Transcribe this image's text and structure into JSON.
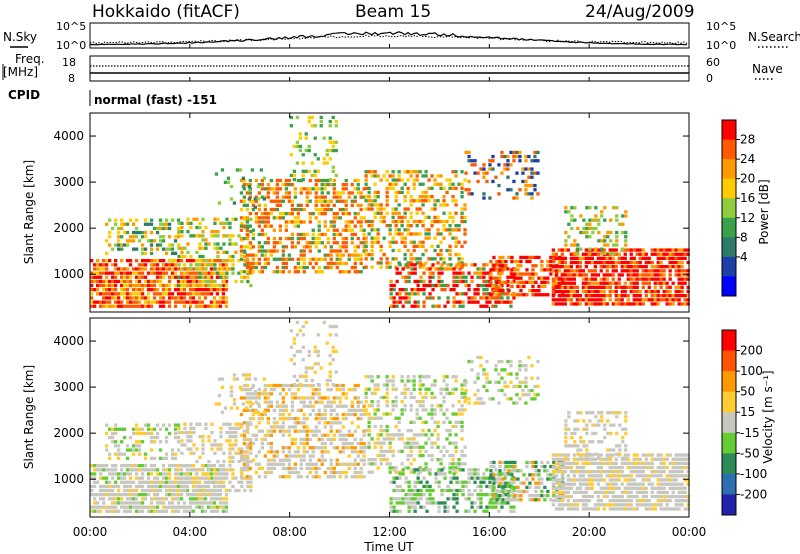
{
  "header": {
    "station": "Hokkaido (fitACF)",
    "beam": "Beam 15",
    "date": "24/Aug/2009"
  },
  "panels": {
    "sky_label": "N.Sky",
    "search_label": "N.Search",
    "sky_ticks": [
      "10^5",
      "10^0"
    ],
    "freq_label_1": "Freq.",
    "freq_label_2": "[MHz]",
    "freq_ticks": [
      "18",
      "8"
    ],
    "nave_label": "Nave",
    "nave_ticks": [
      "60",
      "0"
    ],
    "cpid_label": "CPID",
    "cpid_value": "normal (fast) -151"
  },
  "chart_data": {
    "type": "heatmap",
    "xlabel": "Time UT",
    "x_ticks": [
      "00:00",
      "04:00",
      "08:00",
      "12:00",
      "16:00",
      "20:00",
      "00:00"
    ],
    "xlim_hours": [
      0,
      24
    ],
    "ylabel": "Slant Range [km]",
    "y_ticks": [
      1000,
      2000,
      3000,
      4000
    ],
    "ylim": [
      180,
      4500
    ],
    "panels": [
      {
        "name": "power",
        "colorbar_label": "Power [dB]",
        "colorbar_ticks": [
          "28",
          "24",
          "20",
          "16",
          "12",
          "8",
          "4"
        ],
        "colors": [
          "#0000ff",
          "#1f3fa8",
          "#2e7b6b",
          "#3aa04a",
          "#8fcc3f",
          "#ffcc00",
          "#ff9a00",
          "#ff5a00",
          "#ff0000"
        ]
      },
      {
        "name": "velocity",
        "colorbar_label": "Velocity [m s⁻¹]",
        "colorbar_ticks": [
          "200",
          "100",
          "50",
          "15",
          "-15",
          "-50",
          "-100",
          "-200"
        ],
        "colors": [
          "#2222aa",
          "#2d6fb0",
          "#2e8b57",
          "#66cc33",
          "#c8c8c0",
          "#ffcc33",
          "#ff9900",
          "#ff5500",
          "#ff0000"
        ]
      }
    ]
  }
}
